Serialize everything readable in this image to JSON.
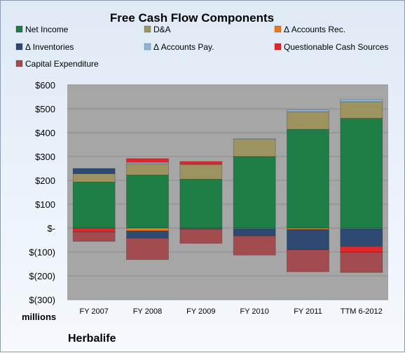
{
  "chart_data": {
    "type": "bar",
    "stacked": true,
    "title": "Free Cash Flow Components",
    "categories": [
      "FY 2007",
      "FY 2008",
      "FY 2009",
      "FY 2010",
      "FY 2011",
      "TTM 6-2012"
    ],
    "ylim": [
      -300,
      600
    ],
    "yticks": [
      {
        "value": 600,
        "label": "$600"
      },
      {
        "value": 500,
        "label": "$500"
      },
      {
        "value": 400,
        "label": "$400"
      },
      {
        "value": 300,
        "label": "$300"
      },
      {
        "value": 200,
        "label": "$200"
      },
      {
        "value": 100,
        "label": "$100"
      },
      {
        "value": 0,
        "label": "$-"
      },
      {
        "value": -100,
        "label": "$(100)"
      },
      {
        "value": -200,
        "label": "$(200)"
      },
      {
        "value": -300,
        "label": "$(300)"
      }
    ],
    "unit_label": "millions",
    "company": "Herbalife",
    "legend_position": "top",
    "grid": true,
    "series": [
      {
        "name": "Net Income",
        "color": "#1e7e45",
        "values": [
          193,
          222,
          205,
          300,
          414,
          460
        ]
      },
      {
        "name": "D&A",
        "color": "#9c9360",
        "values": [
          35,
          48,
          62,
          73,
          74,
          70
        ]
      },
      {
        "name": "Δ Accounts Rec.",
        "color": "#e8781b",
        "values": [
          -2,
          -12,
          -2,
          -3,
          -6,
          -3
        ]
      },
      {
        "name": "Δ Inventories",
        "color": "#2e4a72",
        "values": [
          22,
          -30,
          -2,
          -30,
          -85,
          -73
        ]
      },
      {
        "name": "Δ Accounts Pay.",
        "color": "#8fb4db",
        "values": [
          0,
          6,
          0,
          2,
          8,
          10
        ]
      },
      {
        "name": "Questionable Cash Sources",
        "color": "#e0252c",
        "values": [
          -14,
          15,
          12,
          0,
          0,
          -25
        ]
      },
      {
        "name": "Capital Expenditure",
        "color": "#a24c4f",
        "values": [
          -40,
          -90,
          -60,
          -80,
          -92,
          -85
        ]
      }
    ]
  }
}
